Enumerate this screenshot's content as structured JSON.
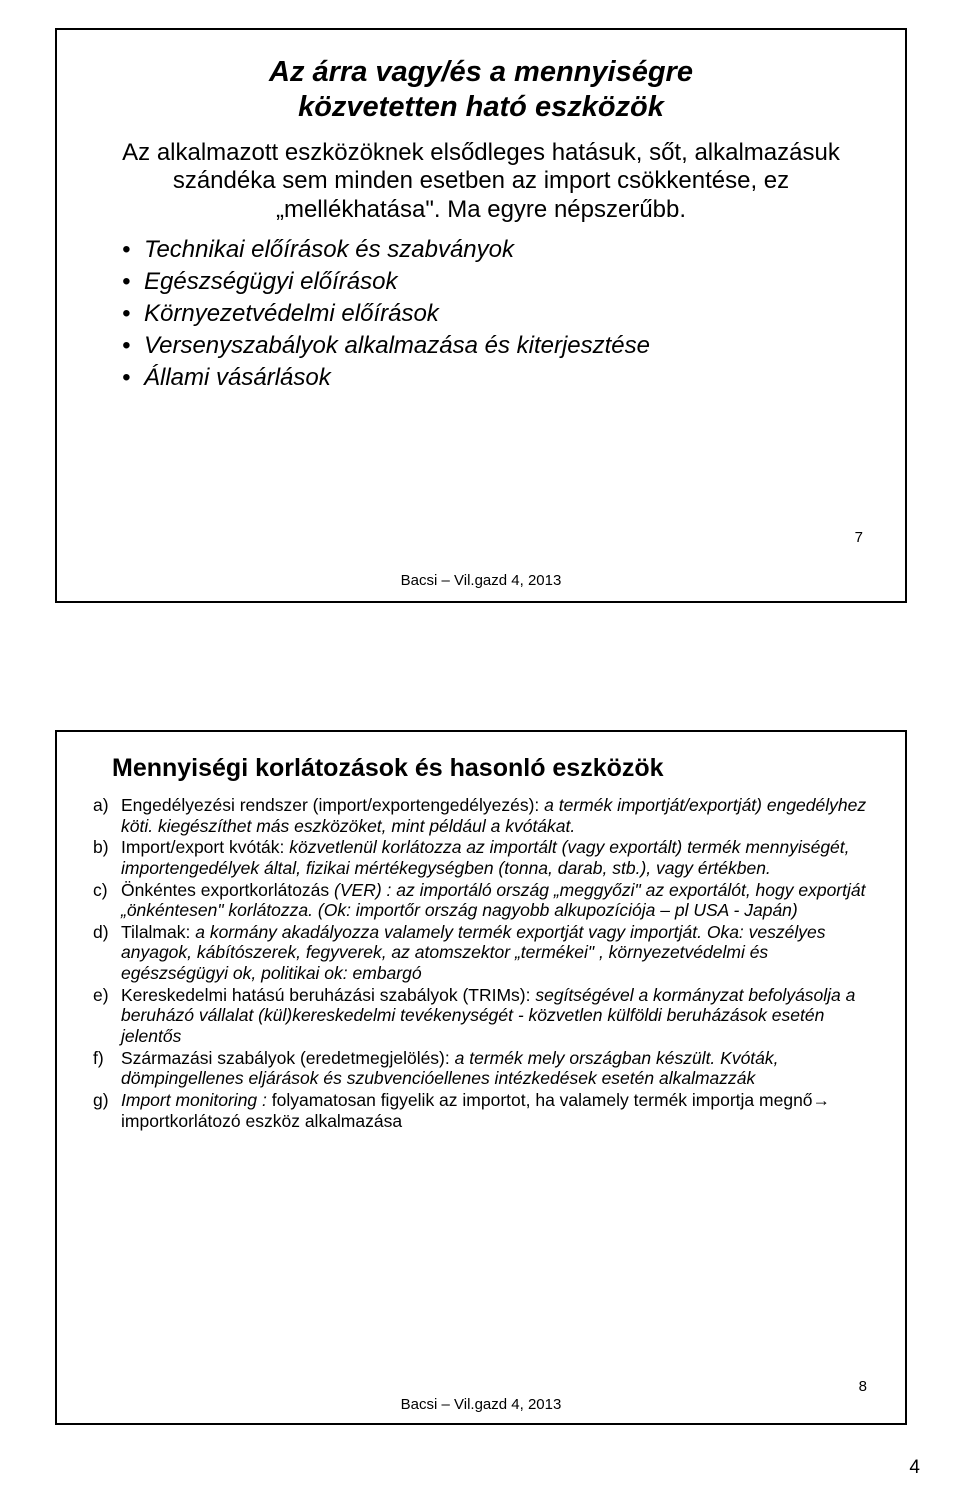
{
  "slide1": {
    "title_line1": "Az árra vagy/és a mennyiségre",
    "title_line2": "közvetetten ható eszközök",
    "intro": "Az alkalmazott eszközöknek elsődleges hatásuk, sőt, alkalmazásuk szándéka sem minden esetben az import csökkentése,  ez „mellékhatása\". Ma egyre népszerűbb.",
    "items": [
      "Technikai előírások és szabványok",
      "Egészségügyi előírások",
      "Környezetvédelmi előírások",
      "Versenyszabályok alkalmazása és kiterjesztése",
      "Állami vásárlások"
    ],
    "footer": "Bacsi – Vil.gazd 4, 2013",
    "pagenum": "7"
  },
  "slide2": {
    "title": "Mennyiségi korlátozások és hasonló eszközök",
    "items": [
      {
        "marker": "a)",
        "lead": "Engedélyezési rendszer (import/exportengedélyezés): ",
        "ital": "a termék importját/exportját) engedélyhez köti. kiegészíthet más eszközöket, mint például a kvótákat."
      },
      {
        "marker": "b)",
        "lead": "Import/export kvóták: ",
        "ital": "közvetlenül korlátozza az importált (vagy exportált) termék mennyiségét, importengedélyek által, fizikai mértékegységben (tonna, darab, stb.), vagy értékben."
      },
      {
        "marker": "c)",
        "lead": "Önkéntes exportkorlátozás ",
        "ital": "(VER) : az importáló ország „meggyőzi\" az exportálót, hogy exportját „önkéntesen\" korlátozza. (Ok: importőr ország nagyobb alkupozíciója – pl USA - Japán)"
      },
      {
        "marker": "d)",
        "lead": "Tilalmak: ",
        "ital": "a kormány akadályozza valamely termék exportját vagy importját. Oka: veszélyes anyagok, kábítószerek, fegyverek, az atomszektor „termékei\" , környezetvédelmi és egészségügyi ok, politikai ok: embargó"
      },
      {
        "marker": "e)",
        "lead": "Kereskedelmi hatású beruházási szabályok (TRIMs): ",
        "ital": "segítségével a kormányzat befolyásolja a beruházó vállalat (kül)kereskedelmi tevékenységét - közvetlen külföldi beruházások esetén jelentős"
      },
      {
        "marker": "f)",
        "lead": "Származási szabályok (eredetmegjelölés): ",
        "ital": "a termék mely országban készült. Kvóták, dömpingellenes eljárások és szubvencióellenes intézkedések esetén alkalmazzák"
      },
      {
        "marker": "g)",
        "lead": "",
        "ital": "Import monitoring : ",
        "tail": "folyamatosan figyelik az importot, ha valamely termék importja megnő→ importkorlátozó eszköz alkalmazása"
      }
    ],
    "footer": "Bacsi – Vil.gazd 4, 2013",
    "pagenum": "8"
  },
  "page_number": "4"
}
